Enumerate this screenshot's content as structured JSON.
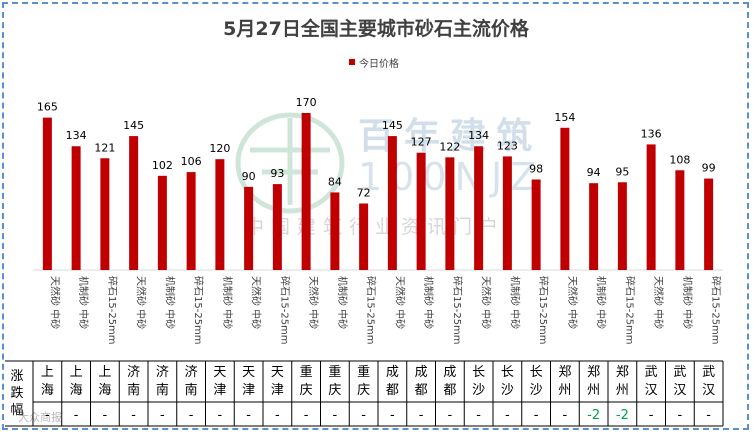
{
  "chart_data": {
    "type": "bar",
    "title": "5月27日全国主要城市砂石主流价格",
    "legend": {
      "label": "今日价格",
      "placement": "top-center"
    },
    "xlabel": "",
    "ylabel": "",
    "grid": false,
    "ylim": [
      0,
      180
    ],
    "colors": {
      "bar": "#c00000",
      "border": "#5b8fd0"
    },
    "series": [
      {
        "name": "今日价格",
        "values": [
          165,
          134,
          121,
          145,
          102,
          106,
          120,
          90,
          93,
          170,
          84,
          72,
          145,
          127,
          122,
          134,
          123,
          98,
          154,
          94,
          95,
          136,
          108,
          99
        ]
      }
    ],
    "categories": [
      "天然砂 中砂",
      "机制砂 中砂",
      "碎石15-25mm",
      "天然砂 中砂",
      "机制砂 中砂",
      "碎石15-25mm",
      "机制砂 中砂",
      "天然砂 中砂",
      "碎石15-25mm",
      "天然砂 中砂",
      "机制砂 中砂",
      "碎石15-25mm",
      "天然砂 中砂",
      "机制砂 中砂",
      "碎石15-25mm",
      "天然砂 中砂",
      "机制砂 中砂",
      "碎石15-25mm",
      "天然砂 中砂",
      "机制砂 中砂",
      "碎石15-25mm",
      "天然砂 中砂",
      "机制砂 中砂",
      "碎石15-25mm"
    ],
    "table": {
      "header": [
        "涨",
        "跌",
        "幅"
      ],
      "cities": [
        "上海",
        "上海",
        "上海",
        "济南",
        "济南",
        "济南",
        "天津",
        "天津",
        "天津",
        "重庆",
        "重庆",
        "重庆",
        "成都",
        "成都",
        "成都",
        "长沙",
        "长沙",
        "长沙",
        "郑州",
        "郑州",
        "郑州",
        "武汉",
        "武汉",
        "武汉"
      ],
      "changes": [
        "-",
        "-",
        "-",
        "-",
        "-",
        "-",
        "-",
        "-",
        "-",
        "-",
        "-",
        "-",
        "-",
        "-",
        "-",
        "-",
        "-",
        "-",
        "-",
        "-2",
        "-2",
        "-",
        "-",
        "-"
      ],
      "change_colors": {
        "negative": "#00a050",
        "neutral": "#000000"
      }
    },
    "watermark": {
      "brand_cn": "百年建筑",
      "brand_en": "100NJZ",
      "subtitle": "中国建筑行业资讯门户",
      "corner": "大众商报"
    }
  }
}
